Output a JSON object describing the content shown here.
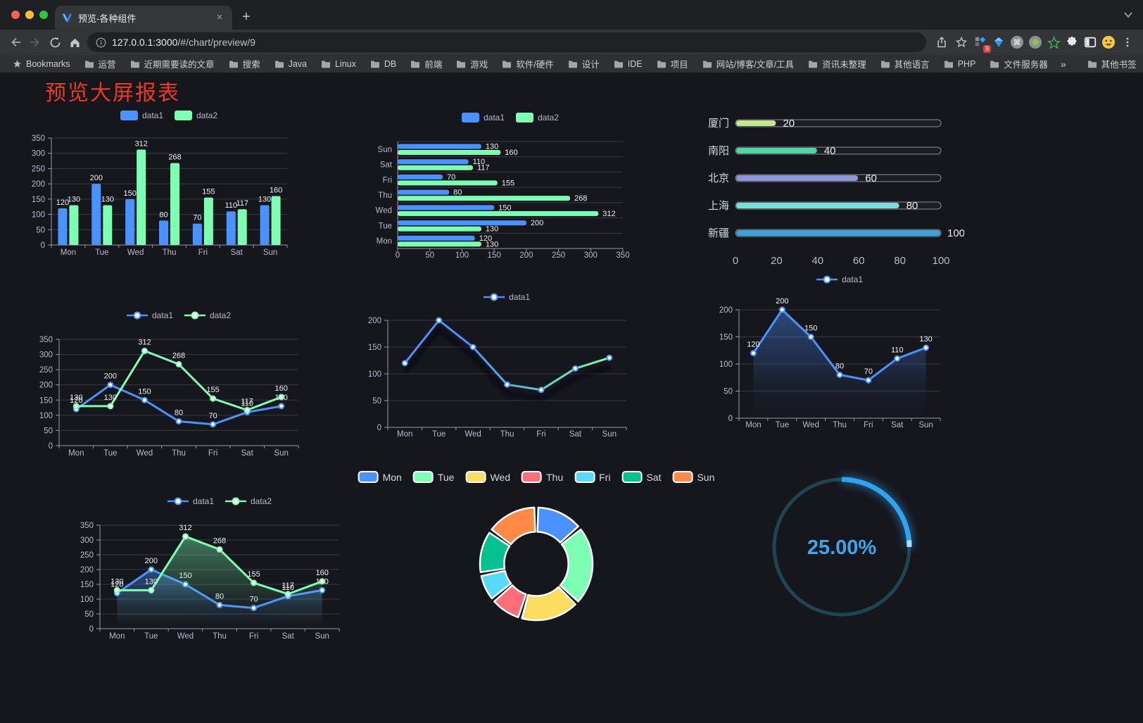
{
  "browser": {
    "tab": {
      "title": "预览-各种组件",
      "close_glyph": "×",
      "new_tab_glyph": "+"
    },
    "url": {
      "host": "127.0.0.1:3000",
      "path": "/#/chart/preview/9"
    },
    "extensions_badge": "9",
    "bookmarks_bar": {
      "star_label": "Bookmarks",
      "folders": [
        "运营",
        "近期需要读的文章",
        "搜索",
        "Java",
        "Linux",
        "DB",
        "前端",
        "游戏",
        "软件/硬件",
        "设计",
        "IDE",
        "项目",
        "网站/博客/文章/工具",
        "资讯未整理",
        "其他语言",
        "PHP",
        "文件服务器"
      ],
      "overflow_glyph": "»",
      "other_bookmarks": "其他书签"
    }
  },
  "page": {
    "title": "预览大屏报表",
    "title_color": "#ea3a27",
    "background": "#16161d"
  },
  "style": {
    "axis_label_color": "#b9b8ce",
    "grid_color": "#3a3a45",
    "axis_line_color": "#9a99ab",
    "value_label_color": "#f0f0f2"
  },
  "chart_data": [
    {
      "id": "bar-vertical",
      "type": "bar",
      "categories": [
        "Mon",
        "Tue",
        "Wed",
        "Thu",
        "Fri",
        "Sat",
        "Sun"
      ],
      "series": [
        {
          "name": "data1",
          "color": "#4992ff",
          "values": [
            120,
            200,
            150,
            80,
            70,
            110,
            130
          ]
        },
        {
          "name": "data2",
          "color": "#7cffb2",
          "values": [
            130,
            130,
            312,
            268,
            155,
            117,
            160
          ]
        }
      ],
      "ylim": [
        0,
        350
      ],
      "ystep": 50,
      "legend_position": "top",
      "grid": true
    },
    {
      "id": "bar-horizontal",
      "type": "bar",
      "orientation": "horizontal",
      "categories_top_to_bottom": [
        "Sun",
        "Sat",
        "Fri",
        "Thu",
        "Wed",
        "Tue",
        "Mon"
      ],
      "series": [
        {
          "name": "data1",
          "color": "#4992ff",
          "values": [
            130,
            110,
            70,
            80,
            150,
            200,
            120
          ]
        },
        {
          "name": "data2",
          "color": "#7cffb2",
          "values": [
            160,
            117,
            155,
            268,
            312,
            130,
            130
          ]
        }
      ],
      "xlim": [
        0,
        350
      ],
      "xstep": 50,
      "legend_position": "top",
      "grid": true
    },
    {
      "id": "progress-list",
      "type": "bar",
      "orientation": "horizontal",
      "items": [
        {
          "label": "厦门",
          "value": 20,
          "color": "#c3e88d"
        },
        {
          "label": "南阳",
          "value": 40,
          "color": "#4fd6a3"
        },
        {
          "label": "北京",
          "value": 60,
          "color": "#8d95dd"
        },
        {
          "label": "上海",
          "value": 80,
          "color": "#79dedb"
        },
        {
          "label": "新疆",
          "value": 100,
          "color": "#38a3dd"
        }
      ],
      "xlim": [
        0,
        100
      ],
      "xticks": [
        0,
        20,
        40,
        60,
        80,
        100
      ]
    },
    {
      "id": "line-two-series",
      "type": "line",
      "categories": [
        "Mon",
        "Tue",
        "Wed",
        "Thu",
        "Fri",
        "Sat",
        "Sun"
      ],
      "series": [
        {
          "name": "data1",
          "color": "#4992ff",
          "values": [
            120,
            200,
            150,
            80,
            70,
            110,
            130
          ]
        },
        {
          "name": "data2",
          "color": "#7cffb2",
          "values": [
            130,
            130,
            312,
            268,
            155,
            117,
            160
          ]
        }
      ],
      "ylim": [
        0,
        350
      ],
      "ystep": 50,
      "show_labels": true,
      "legend_position": "top"
    },
    {
      "id": "line-gradient-shadow",
      "type": "line",
      "categories": [
        "Mon",
        "Tue",
        "Wed",
        "Thu",
        "Fri",
        "Sat",
        "Sun"
      ],
      "series": [
        {
          "name": "data1",
          "gradient": [
            "#4992ff",
            "#4992ff",
            "#58d0c0",
            "#7cffb2"
          ],
          "color": "#4992ff",
          "values": [
            120,
            200,
            150,
            80,
            70,
            110,
            130
          ]
        }
      ],
      "ylim": [
        0,
        200
      ],
      "ystep": 50,
      "show_labels": false,
      "shadow": true,
      "legend_position": "top"
    },
    {
      "id": "area-single",
      "type": "area",
      "categories": [
        "Mon",
        "Tue",
        "Wed",
        "Thu",
        "Fri",
        "Sat",
        "Sun"
      ],
      "series": [
        {
          "name": "data1",
          "color": "#4992ff",
          "values": [
            120,
            200,
            150,
            80,
            70,
            110,
            130
          ]
        }
      ],
      "ylim": [
        0,
        200
      ],
      "ystep": 50,
      "show_labels": true,
      "legend_position": "top"
    },
    {
      "id": "area-two-series",
      "type": "area",
      "categories": [
        "Mon",
        "Tue",
        "Wed",
        "Thu",
        "Fri",
        "Sat",
        "Sun"
      ],
      "series": [
        {
          "name": "data1",
          "color": "#4992ff",
          "values": [
            120,
            200,
            150,
            80,
            70,
            110,
            130
          ]
        },
        {
          "name": "data2",
          "color": "#7cffb2",
          "values": [
            130,
            130,
            312,
            268,
            155,
            117,
            160
          ]
        }
      ],
      "ylim": [
        0,
        350
      ],
      "ystep": 50,
      "show_labels": true,
      "legend_position": "top"
    },
    {
      "id": "donut",
      "type": "pie",
      "labels": [
        "Mon",
        "Tue",
        "Wed",
        "Thu",
        "Fri",
        "Sat",
        "Sun"
      ],
      "values": [
        120,
        200,
        150,
        80,
        70,
        110,
        130
      ],
      "colors": [
        "#4992ff",
        "#7cffb2",
        "#fddd60",
        "#ff6e76",
        "#58d9f9",
        "#05c091",
        "#ff8a45"
      ],
      "inner_radius_ratio": 0.57,
      "legend_position": "top"
    },
    {
      "id": "gauge",
      "type": "gauge",
      "value": 25,
      "display": "25.00%",
      "color": "#2da4ef",
      "tip_color": "#a8ddfb",
      "track_color": "#1e4652",
      "text_color": "#3ba6f0"
    }
  ]
}
